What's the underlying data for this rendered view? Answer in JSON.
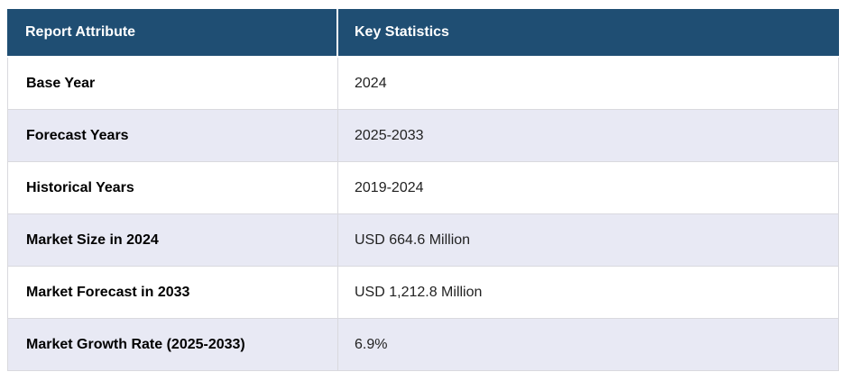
{
  "chart_data": {
    "type": "table",
    "columns": [
      "Report Attribute",
      "Key Statistics"
    ],
    "rows": [
      [
        "Base Year",
        "2024"
      ],
      [
        "Forecast Years",
        "2025-2033"
      ],
      [
        "Historical Years",
        "2019-2024"
      ],
      [
        "Market Size in 2024",
        "USD 664.6 Million"
      ],
      [
        "Market Forecast in 2033",
        "USD 1,212.8 Million"
      ],
      [
        "Market Growth Rate (2025-2033)",
        "6.9%"
      ]
    ]
  },
  "colors": {
    "header_bg": "#1F4E73",
    "header_text": "#FFFFFF",
    "row_bg": "#FFFFFF",
    "alt_row_bg": "#E8E9F4",
    "border": "#D9D9DE",
    "attribute_text": "#000000",
    "value_text": "#222222"
  }
}
